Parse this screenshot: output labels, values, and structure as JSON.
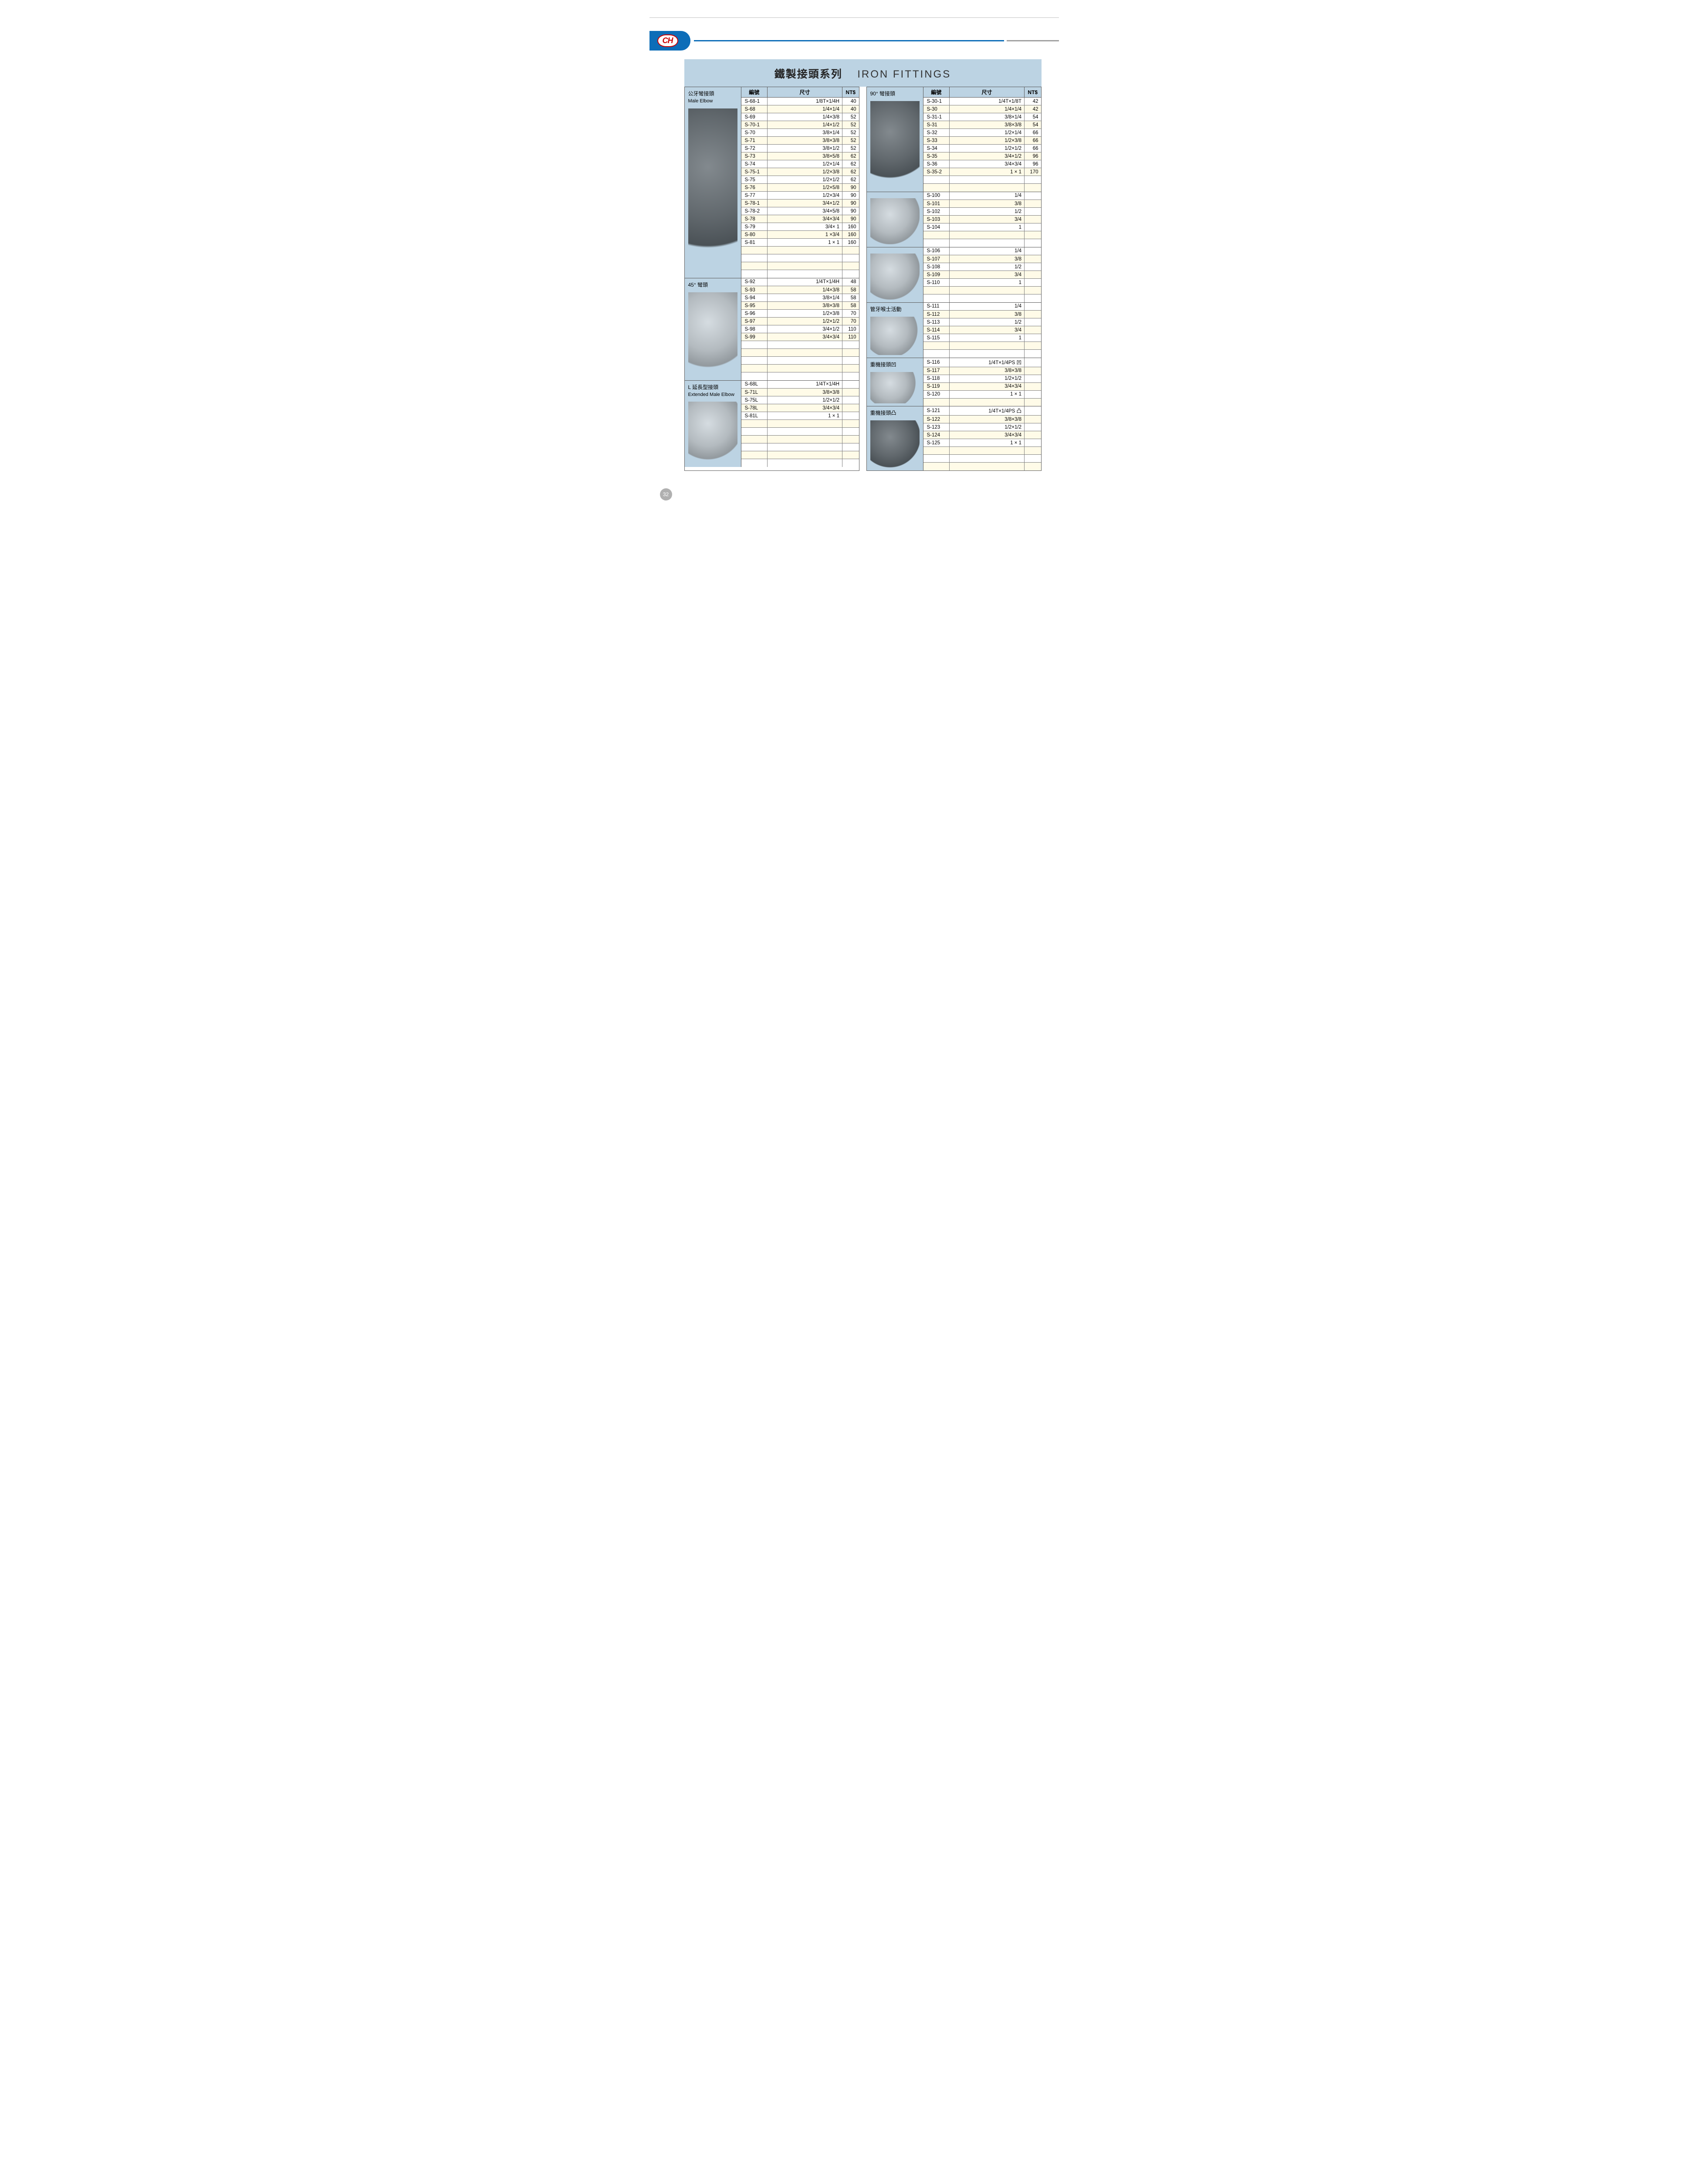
{
  "logo": "CH",
  "title_cn": "鐵製接頭系列",
  "title_en": "IRON FITTINGS",
  "page_number": "32",
  "headers": {
    "code": "編號",
    "size": "尺寸",
    "price": "NT$"
  },
  "left": [
    {
      "label_cn": "公牙彎接頭",
      "label_en": "Male Elbow",
      "img": "dark",
      "show_header": true,
      "rows": [
        [
          "S-68-1",
          "1/8T×1/4H",
          "40"
        ],
        [
          "S-68",
          "1/4×1/4",
          "40"
        ],
        [
          "S-69",
          "1/4×3/8",
          "52"
        ],
        [
          "S-70-1",
          "1/4×1/2",
          "52"
        ],
        [
          "S-70",
          "3/8×1/4",
          "52"
        ],
        [
          "S-71",
          "3/8×3/8",
          "52"
        ],
        [
          "S-72",
          "3/8×1/2",
          "52"
        ],
        [
          "S-73",
          "3/8×5/8",
          "62"
        ],
        [
          "S-74",
          "1/2×1/4",
          "62"
        ],
        [
          "S-75-1",
          "1/2×3/8",
          "62"
        ],
        [
          "S-75",
          "1/2×1/2",
          "62"
        ],
        [
          "S-76",
          "1/2×5/8",
          "90"
        ],
        [
          "S-77",
          "1/2×3/4",
          "90"
        ],
        [
          "S-78-1",
          "3/4×1/2",
          "90"
        ],
        [
          "S-78-2",
          "3/4×5/8",
          "90"
        ],
        [
          "S-78",
          "3/4×3/4",
          "90"
        ],
        [
          "S-79",
          "3/4× 1",
          "160"
        ],
        [
          "S-80",
          "1 ×3/4",
          "160"
        ],
        [
          "S-81",
          "1 × 1",
          "160"
        ],
        [
          "",
          "",
          ""
        ],
        [
          "",
          "",
          ""
        ],
        [
          "",
          "",
          ""
        ],
        [
          "",
          "",
          ""
        ]
      ]
    },
    {
      "label_cn": "45° 彎頭",
      "label_en": "",
      "img": "silver",
      "show_header": false,
      "rows": [
        [
          "S-92",
          "1/4T×1/4H",
          "48"
        ],
        [
          "S-93",
          "1/4×3/8",
          "58"
        ],
        [
          "S-94",
          "3/8×1/4",
          "58"
        ],
        [
          "S-95",
          "3/8×3/8",
          "58"
        ],
        [
          "S-96",
          "1/2×3/8",
          "70"
        ],
        [
          "S-97",
          "1/2×1/2",
          "70"
        ],
        [
          "S-98",
          "3/4×1/2",
          "110"
        ],
        [
          "S-99",
          "3/4×3/4",
          "110"
        ],
        [
          "",
          "",
          ""
        ],
        [
          "",
          "",
          ""
        ],
        [
          "",
          "",
          ""
        ],
        [
          "",
          "",
          ""
        ],
        [
          "",
          "",
          ""
        ]
      ]
    },
    {
      "label_cn": "L 延長型接頭",
      "label_en": "Extended Male Elbow",
      "img": "silver",
      "show_header": false,
      "rows": [
        [
          "S-68L",
          "1/4T×1/4H",
          ""
        ],
        [
          "S-71L",
          "3/8×3/8",
          ""
        ],
        [
          "S-75L",
          "1/2×1/2",
          ""
        ],
        [
          "S-78L",
          "3/4×3/4",
          ""
        ],
        [
          "S-81L",
          "1 × 1",
          ""
        ],
        [
          "",
          "",
          ""
        ],
        [
          "",
          "",
          ""
        ],
        [
          "",
          "",
          ""
        ],
        [
          "",
          "",
          ""
        ],
        [
          "",
          "",
          ""
        ],
        [
          "",
          "",
          ""
        ]
      ]
    }
  ],
  "right": [
    {
      "label_cn": "90° 彎接頭",
      "label_en": "",
      "img": "dark",
      "show_header": true,
      "rows": [
        [
          "S-30-1",
          "1/4T×1/8T",
          "42"
        ],
        [
          "S-30",
          "1/4×1/4",
          "42"
        ],
        [
          "S-31-1",
          "3/8×1/4",
          "54"
        ],
        [
          "S-31",
          "3/8×3/8",
          "54"
        ],
        [
          "S-32",
          "1/2×1/4",
          "66"
        ],
        [
          "S-33",
          "1/2×3/8",
          "66"
        ],
        [
          "S-34",
          "1/2×1/2",
          "66"
        ],
        [
          "S-35",
          "3/4×1/2",
          "96"
        ],
        [
          "S-36",
          "3/4×3/4",
          "96"
        ],
        [
          "S-35-2",
          "1 × 1",
          "170"
        ],
        [
          "",
          "",
          ""
        ],
        [
          "",
          "",
          ""
        ]
      ]
    },
    {
      "label_cn": "",
      "label_en": "",
      "img": "silver",
      "show_header": false,
      "rows": [
        [
          "S-100",
          "1/4",
          ""
        ],
        [
          "S-101",
          "3/8",
          ""
        ],
        [
          "S-102",
          "1/2",
          ""
        ],
        [
          "S-103",
          "3/4",
          ""
        ],
        [
          "S-104",
          "1",
          ""
        ],
        [
          "",
          "",
          ""
        ],
        [
          "",
          "",
          ""
        ]
      ]
    },
    {
      "label_cn": "",
      "label_en": "",
      "img": "silver",
      "show_header": false,
      "rows": [
        [
          "S-106",
          "1/4",
          ""
        ],
        [
          "S-107",
          "3/8",
          ""
        ],
        [
          "S-108",
          "1/2",
          ""
        ],
        [
          "S-109",
          "3/4",
          ""
        ],
        [
          "S-110",
          "1",
          ""
        ],
        [
          "",
          "",
          ""
        ],
        [
          "",
          "",
          ""
        ]
      ]
    },
    {
      "label_cn": "管牙喉士活動",
      "label_en": "",
      "img": "silver",
      "show_header": false,
      "rows": [
        [
          "S-111",
          "1/4",
          ""
        ],
        [
          "S-112",
          "3/8",
          ""
        ],
        [
          "S-113",
          "1/2",
          ""
        ],
        [
          "S-114",
          "3/4",
          ""
        ],
        [
          "S-115",
          "1",
          ""
        ],
        [
          "",
          "",
          ""
        ],
        [
          "",
          "",
          ""
        ]
      ]
    },
    {
      "label_cn": "重機接頭凹",
      "label_en": "",
      "img": "silver",
      "show_header": false,
      "rows": [
        [
          "S-116",
          "1/4T×1/4PS 凹",
          ""
        ],
        [
          "S-117",
          "3/8×3/8",
          ""
        ],
        [
          "S-118",
          "1/2×1/2",
          ""
        ],
        [
          "S-119",
          "3/4×3/4",
          ""
        ],
        [
          "S-120",
          "1 × 1",
          ""
        ],
        [
          "",
          "",
          ""
        ]
      ]
    },
    {
      "label_cn": "重機接頭凸",
      "label_en": "",
      "img": "dark",
      "show_header": false,
      "rows": [
        [
          "S-121",
          "1/4T×1/4PS 凸",
          ""
        ],
        [
          "S-122",
          "3/8×3/8",
          ""
        ],
        [
          "S-123",
          "1/2×1/2",
          ""
        ],
        [
          "S-124",
          "3/4×3/4",
          ""
        ],
        [
          "S-125",
          "1 × 1",
          ""
        ],
        [
          "",
          "",
          ""
        ],
        [
          "",
          "",
          ""
        ],
        [
          "",
          "",
          ""
        ]
      ]
    }
  ]
}
